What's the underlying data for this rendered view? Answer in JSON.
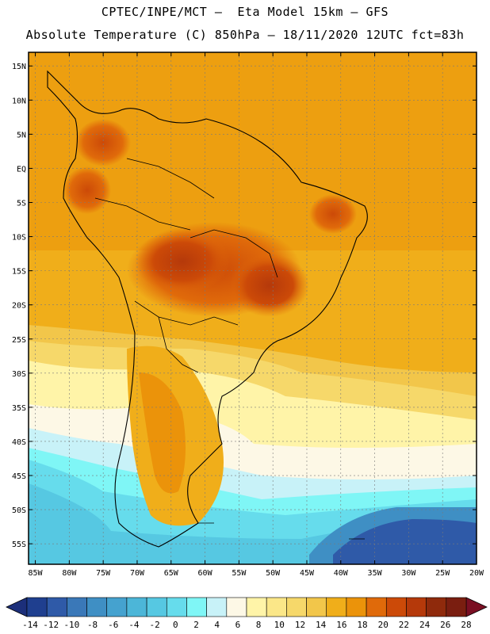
{
  "header": {
    "line1": "CPTEC/INPE/MCT –  Eta Model 15km – GFS",
    "line2": "Absolute Temperature (C) 850hPa – 18/11/2020 12UTC fct=83h"
  },
  "map": {
    "lat_labels": [
      "15N",
      "10N",
      "5N",
      "EQ",
      "5S",
      "10S",
      "15S",
      "20S",
      "25S",
      "30S",
      "35S",
      "40S",
      "45S",
      "50S",
      "55S"
    ],
    "lat_values": [
      15,
      10,
      5,
      0,
      -5,
      -10,
      -15,
      -20,
      -25,
      -30,
      -35,
      -40,
      -45,
      -50,
      -55
    ],
    "lon_labels": [
      "85W",
      "80W",
      "75W",
      "70W",
      "65W",
      "60W",
      "55W",
      "50W",
      "45W",
      "40W",
      "35W",
      "30W",
      "25W",
      "20W"
    ],
    "lon_values": [
      -85,
      -80,
      -75,
      -70,
      -65,
      -60,
      -55,
      -50,
      -45,
      -40,
      -35,
      -30,
      -25,
      -20
    ],
    "lat_range": [
      -58,
      17
    ],
    "lon_range": [
      -86,
      -20
    ]
  },
  "colorbar": {
    "labels": [
      "-14",
      "-12",
      "-10",
      "-8",
      "-6",
      "-4",
      "-2",
      "0",
      "2",
      "4",
      "6",
      "8",
      "10",
      "12",
      "14",
      "16",
      "18",
      "20",
      "22",
      "24",
      "26",
      "28"
    ],
    "colors": [
      "#1f3f8f",
      "#2f5aa8",
      "#3a78b8",
      "#3f8fc4",
      "#45a2cf",
      "#4cb6d8",
      "#56c8e2",
      "#66dcec",
      "#7ff6f6",
      "#c8f2f8",
      "#fdf8e6",
      "#fff4a8",
      "#fbe788",
      "#f6d86a",
      "#f2c64a",
      "#f0ae1a",
      "#eb930a",
      "#e06a0a",
      "#cc4a08",
      "#b5390a",
      "#8f2a0c",
      "#7a1e10"
    ],
    "under_color": "#1c2f7a",
    "over_color": "#7a0f23"
  }
}
